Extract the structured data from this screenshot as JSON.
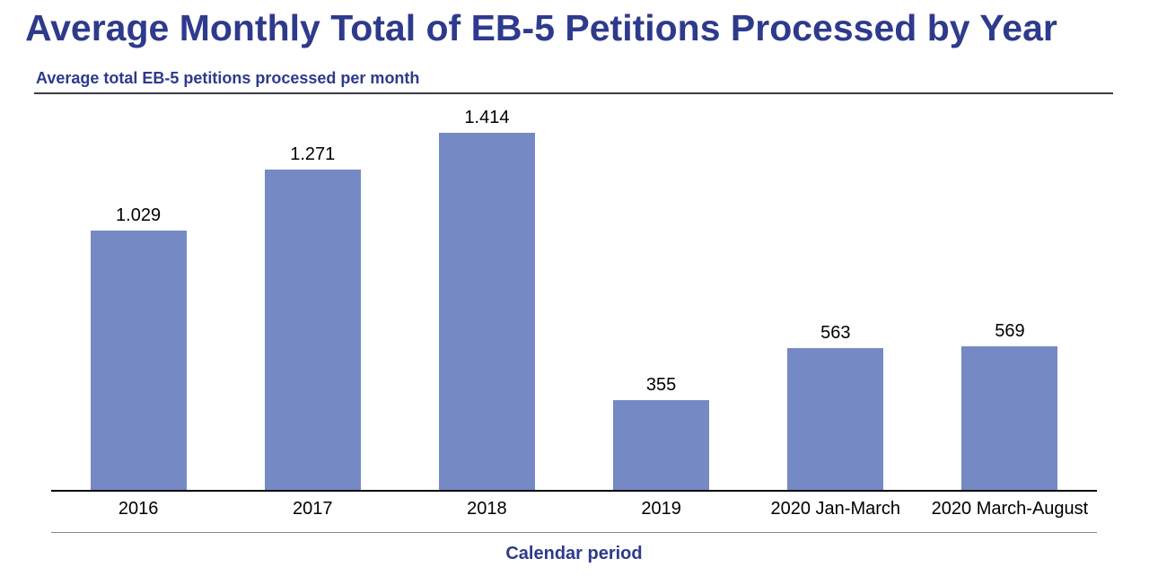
{
  "header": {
    "title": "Average Monthly Total of EB-5 Petitions Processed by Year",
    "subtitle": "Average total EB-5 petitions processed per month"
  },
  "chart_data": {
    "type": "bar",
    "title": "Average Monthly Total of EB-5 Petitions Processed by Year",
    "subtitle": "Average total EB-5 petitions processed per month",
    "categories": [
      "2016",
      "2017",
      "2018",
      "2019",
      "2020 Jan-March",
      "2020 March-August"
    ],
    "values": [
      1029,
      1271,
      1414,
      355,
      563,
      569
    ],
    "display_values": [
      "1.029",
      "1.271",
      "1.414",
      "355",
      "563",
      "569"
    ],
    "xlabel": "Calendar period",
    "ylabel": "",
    "ylim": [
      0,
      1540
    ],
    "grid": false,
    "legend": false,
    "y_axis_visible": false,
    "bar_color": "#7589C4"
  },
  "colors": {
    "title_navy": "#2E3A8C",
    "bar_fill": "#7589C4",
    "baseline_black": "#000000",
    "subtitle_rule": "#3C3C46",
    "separator_gray": "#888888",
    "label_black": "#000000",
    "background": "#FFFFFF"
  }
}
